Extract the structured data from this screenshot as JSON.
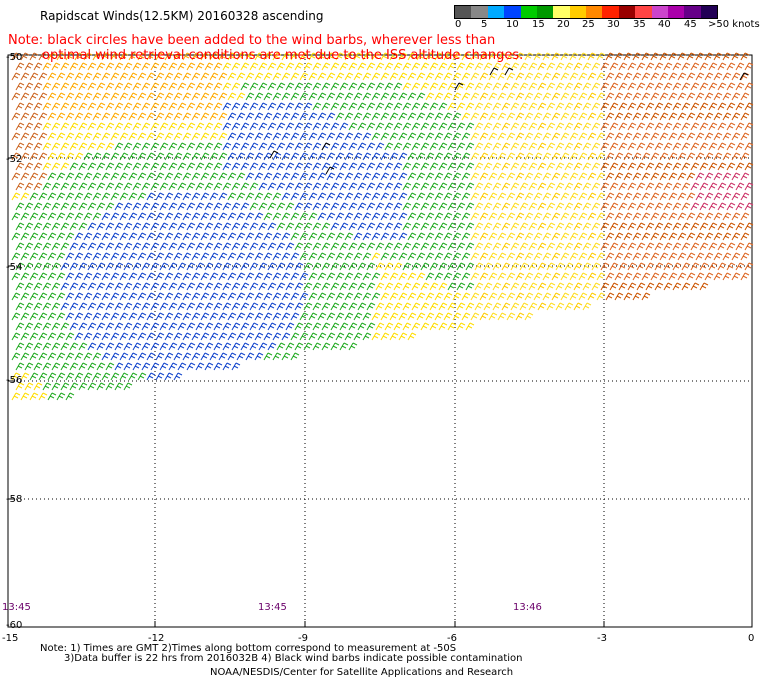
{
  "title": "Rapidscat Winds(12.5KM) 20160328 ascending",
  "note_red": {
    "line1": "Note: black circles have been added to the wind barbs, wherever less than",
    "line2": "optimal wind retrieval conditions are met due to the ISS altitude changes."
  },
  "legend": {
    "colors": [
      "#555555",
      "#888888",
      "#00aaff",
      "#0044ff",
      "#00cc00",
      "#009900",
      "#ffff66",
      "#ffcc00",
      "#ff8800",
      "#ff2200",
      "#990000",
      "#ff4444",
      "#cc44cc",
      "#aa00aa",
      "#660088",
      "#220055"
    ],
    "labels": [
      "0",
      "5",
      "10",
      "15",
      "20",
      "25",
      "30",
      "35",
      "40",
      "45",
      ">50 knots"
    ]
  },
  "axes": {
    "y_ticks": [
      "-50",
      "-52",
      "-54",
      "-56",
      "-58",
      "-60"
    ],
    "x_ticks": [
      "-15",
      "-12",
      "-9",
      "-6",
      "-3",
      "0"
    ],
    "time_labels": [
      "13:45",
      "13:45",
      "13:46"
    ]
  },
  "footer": {
    "line1": "Note: 1) Times are GMT 2)Times along bottom correspond to measurement at -50S",
    "line2": "3)Data buffer is 22 hrs from 2016032B 4) Black wind barbs indicate possible contamination",
    "credit": "NOAA/NESDIS/Center for Satellite Applications and Research"
  }
}
